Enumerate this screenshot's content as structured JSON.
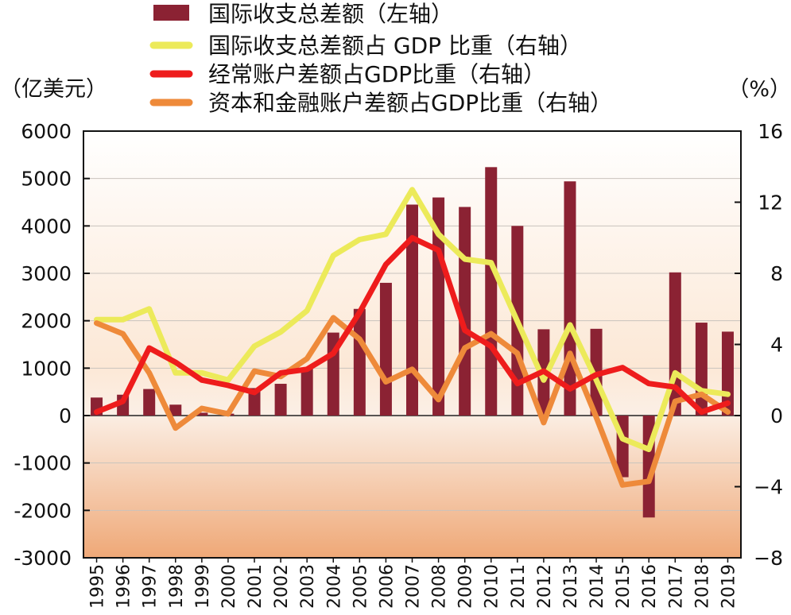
{
  "chart_data": {
    "type": "bar+line",
    "categories": [
      "1995",
      "1996",
      "1997",
      "1998",
      "1999",
      "2000",
      "2001",
      "2002",
      "2003",
      "2004",
      "2005",
      "2006",
      "2007",
      "2008",
      "2009",
      "2010",
      "2011",
      "2012",
      "2013",
      "2014",
      "2015",
      "2016",
      "2017",
      "2018",
      "2019"
    ],
    "bar_series": {
      "name": "国际收支总差额（左轴）",
      "color": "#8b2233",
      "values": [
        380,
        440,
        560,
        230,
        60,
        40,
        580,
        670,
        1000,
        1750,
        2250,
        2800,
        4450,
        4600,
        4400,
        5240,
        4000,
        1820,
        4940,
        1830,
        -1300,
        -2150,
        3020,
        1960,
        1770
      ]
    },
    "line_series": [
      {
        "name": "国际收支总差额占 GDP 比重（右轴）",
        "color": "#ecea5a",
        "values": [
          5.4,
          5.4,
          6.0,
          2.4,
          2.4,
          2.0,
          3.9,
          4.7,
          5.9,
          9.0,
          9.9,
          10.2,
          12.7,
          10.2,
          8.8,
          8.6,
          5.3,
          2.0,
          5.1,
          2.0,
          -1.3,
          -1.9,
          2.4,
          1.4,
          1.2
        ]
      },
      {
        "name": "经常账户差额占GDP比重（右轴）",
        "color": "#ee1c1c",
        "values": [
          0.2,
          0.8,
          3.8,
          3.0,
          2.0,
          1.7,
          1.3,
          2.4,
          2.6,
          3.5,
          5.8,
          8.5,
          10.0,
          9.3,
          4.8,
          3.9,
          1.8,
          2.5,
          1.5,
          2.3,
          2.7,
          1.8,
          1.6,
          0.2,
          0.7
        ]
      },
      {
        "name": "资本和金融账户差额占GDP比重（右轴）",
        "color": "#ee8a3a",
        "values": [
          5.2,
          4.6,
          2.4,
          -0.7,
          0.4,
          0.1,
          2.5,
          2.2,
          3.2,
          5.5,
          4.3,
          1.9,
          2.6,
          0.9,
          3.8,
          4.6,
          3.5,
          -0.4,
          3.5,
          -0.1,
          -3.9,
          -3.7,
          0.8,
          1.2,
          0.2
        ]
      }
    ],
    "y_left": {
      "label": "（亿美元）",
      "min": -3000,
      "max": 6000,
      "ticks": [
        6000,
        5000,
        4000,
        3000,
        2000,
        1000,
        0,
        -1000,
        -2000,
        -3000
      ]
    },
    "y_right": {
      "label": "（%）",
      "min": -8,
      "max": 16,
      "ticks": [
        16,
        12,
        8,
        4,
        0,
        -4,
        -8
      ]
    }
  },
  "legend": [
    {
      "label": "国际收支总差额（左轴）",
      "color": "#8b2233",
      "kind": "bar"
    },
    {
      "label": "国际收支总差额占 GDP 比重（右轴）",
      "color": "#ecea5a",
      "kind": "line"
    },
    {
      "label": "经常账户差额占GDP比重（右轴）",
      "color": "#ee1c1c",
      "kind": "line"
    },
    {
      "label": "资本和金融账户差额占GDP比重（右轴）",
      "color": "#ee8a3a",
      "kind": "line"
    }
  ],
  "colors": {
    "bg_top": "#ffffff",
    "bg_zero": "#fdf1e4",
    "bg_bottom": "#efaa78",
    "grid": "#cfcfcf",
    "axis": "#111111"
  }
}
